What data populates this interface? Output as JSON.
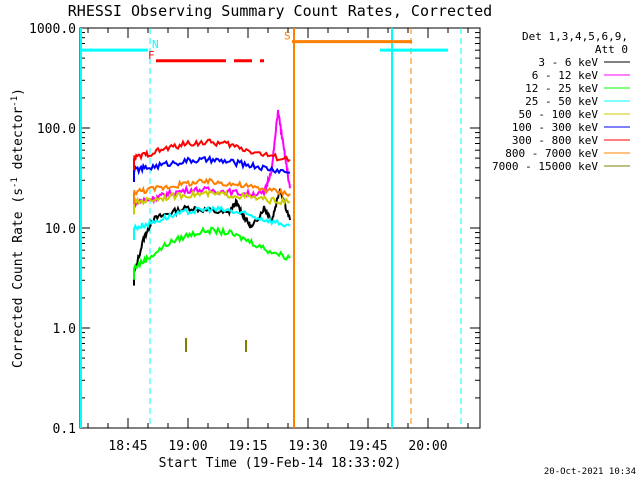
{
  "chart_data": {
    "type": "line",
    "title": "RHESSI Observing Summary Count Rates, Corrected",
    "xlabel": "Start Time (19-Feb-14 18:33:02)",
    "ylabel_main": "Corrected Count Rate (s",
    "ylabel_sup": "-1",
    "ylabel_mid": " detector",
    "ylabel_end": ")",
    "scale": "log",
    "grid": false,
    "legend_position": "right",
    "xlim_minutes": [
      0,
      100
    ],
    "ylim": [
      0.1,
      1000
    ],
    "x_ticks": [
      {
        "minute": 12,
        "label": "18:45"
      },
      {
        "minute": 27,
        "label": "19:00"
      },
      {
        "minute": 42,
        "label": "19:15"
      },
      {
        "minute": 57,
        "label": "19:30"
      },
      {
        "minute": 72,
        "label": "19:45"
      },
      {
        "minute": 87,
        "label": "20:00"
      }
    ],
    "y_ticks": [
      {
        "value": 0.1,
        "label": "0.1"
      },
      {
        "value": 1,
        "label": "1.0"
      },
      {
        "value": 10,
        "label": "10.0"
      },
      {
        "value": 100,
        "label": "100.0"
      },
      {
        "value": 1000,
        "label": "1000.0"
      }
    ],
    "legend_header": [
      "Det 1,3,4,5,6,9,",
      "Att 0"
    ],
    "series": [
      {
        "name": "3 - 6 keV",
        "color": "#000000",
        "x": [
          13.5,
          16,
          18,
          22,
          27,
          32,
          37,
          39,
          41,
          43,
          46,
          48,
          50,
          52.5
        ],
        "y": [
          3.5,
          8,
          12,
          14,
          16,
          15,
          14,
          18,
          13,
          10,
          16,
          12,
          25,
          12
        ]
      },
      {
        "name": "6 - 12 keV",
        "color": "#ff00ff",
        "x": [
          13.5,
          16,
          19,
          22,
          27,
          32,
          37,
          42,
          46,
          48,
          49.5,
          51,
          52.5
        ],
        "y": [
          18,
          19,
          20,
          22,
          24,
          24,
          23,
          22,
          22,
          40,
          150,
          60,
          25
        ]
      },
      {
        "name": "12 - 25 keV",
        "color": "#00ff00",
        "x": [
          13.5,
          17,
          22,
          27,
          32,
          37,
          42,
          47,
          52.5
        ],
        "y": [
          4,
          5,
          7,
          8.5,
          9.5,
          9,
          7.5,
          6,
          5
        ]
      },
      {
        "name": "25 - 50 keV",
        "color": "#00ffff",
        "x": [
          13.5,
          17,
          22,
          27,
          32,
          37,
          42,
          47,
          52.5
        ],
        "y": [
          10,
          11,
          13,
          14.5,
          15.5,
          15,
          13.5,
          12,
          10.5
        ]
      },
      {
        "name": "50 - 100 keV",
        "color": "#cccc00",
        "x": [
          13.5,
          17,
          22,
          27,
          32,
          37,
          42,
          47,
          52.5
        ],
        "y": [
          18,
          19,
          20.5,
          21.5,
          22,
          21.5,
          20.5,
          19,
          18
        ]
      },
      {
        "name": "100 - 300 keV",
        "color": "#0000ff",
        "x": [
          13.5,
          17,
          22,
          27,
          32,
          37,
          42,
          47,
          52.5
        ],
        "y": [
          38,
          40,
          44,
          47,
          48,
          46,
          43,
          39,
          36
        ]
      },
      {
        "name": "300 - 800 keV",
        "color": "#ff0000",
        "x": [
          13.5,
          17,
          22,
          27,
          32,
          37,
          42,
          47,
          52.5
        ],
        "y": [
          50,
          55,
          63,
          70,
          72,
          69,
          60,
          53,
          48
        ]
      },
      {
        "name": "800 - 7000 keV",
        "color": "#ff8000",
        "x": [
          13.5,
          17,
          22,
          27,
          32,
          37,
          42,
          47,
          52.5
        ],
        "y": [
          23,
          24,
          26,
          28,
          29,
          28,
          26,
          24,
          22
        ]
      },
      {
        "name": "7000 - 15000 keV",
        "color": "#808000",
        "x": [],
        "y": []
      }
    ],
    "flag_bars": [
      {
        "label": "N",
        "color": "#00ffff",
        "from": 0,
        "to": 17,
        "value": 600
      },
      {
        "label": "",
        "color": "#00ffff",
        "from": 75,
        "to": 92,
        "value": 600
      },
      {
        "label": "S",
        "color": "#ff8000",
        "from": 53,
        "to": 83,
        "value": 730
      },
      {
        "label": "F",
        "color": "#ff0000",
        "from": 19,
        "to": 46,
        "value": 470
      }
    ]
  },
  "footer": {
    "timestamp": "20-Oct-2021 10:34"
  }
}
